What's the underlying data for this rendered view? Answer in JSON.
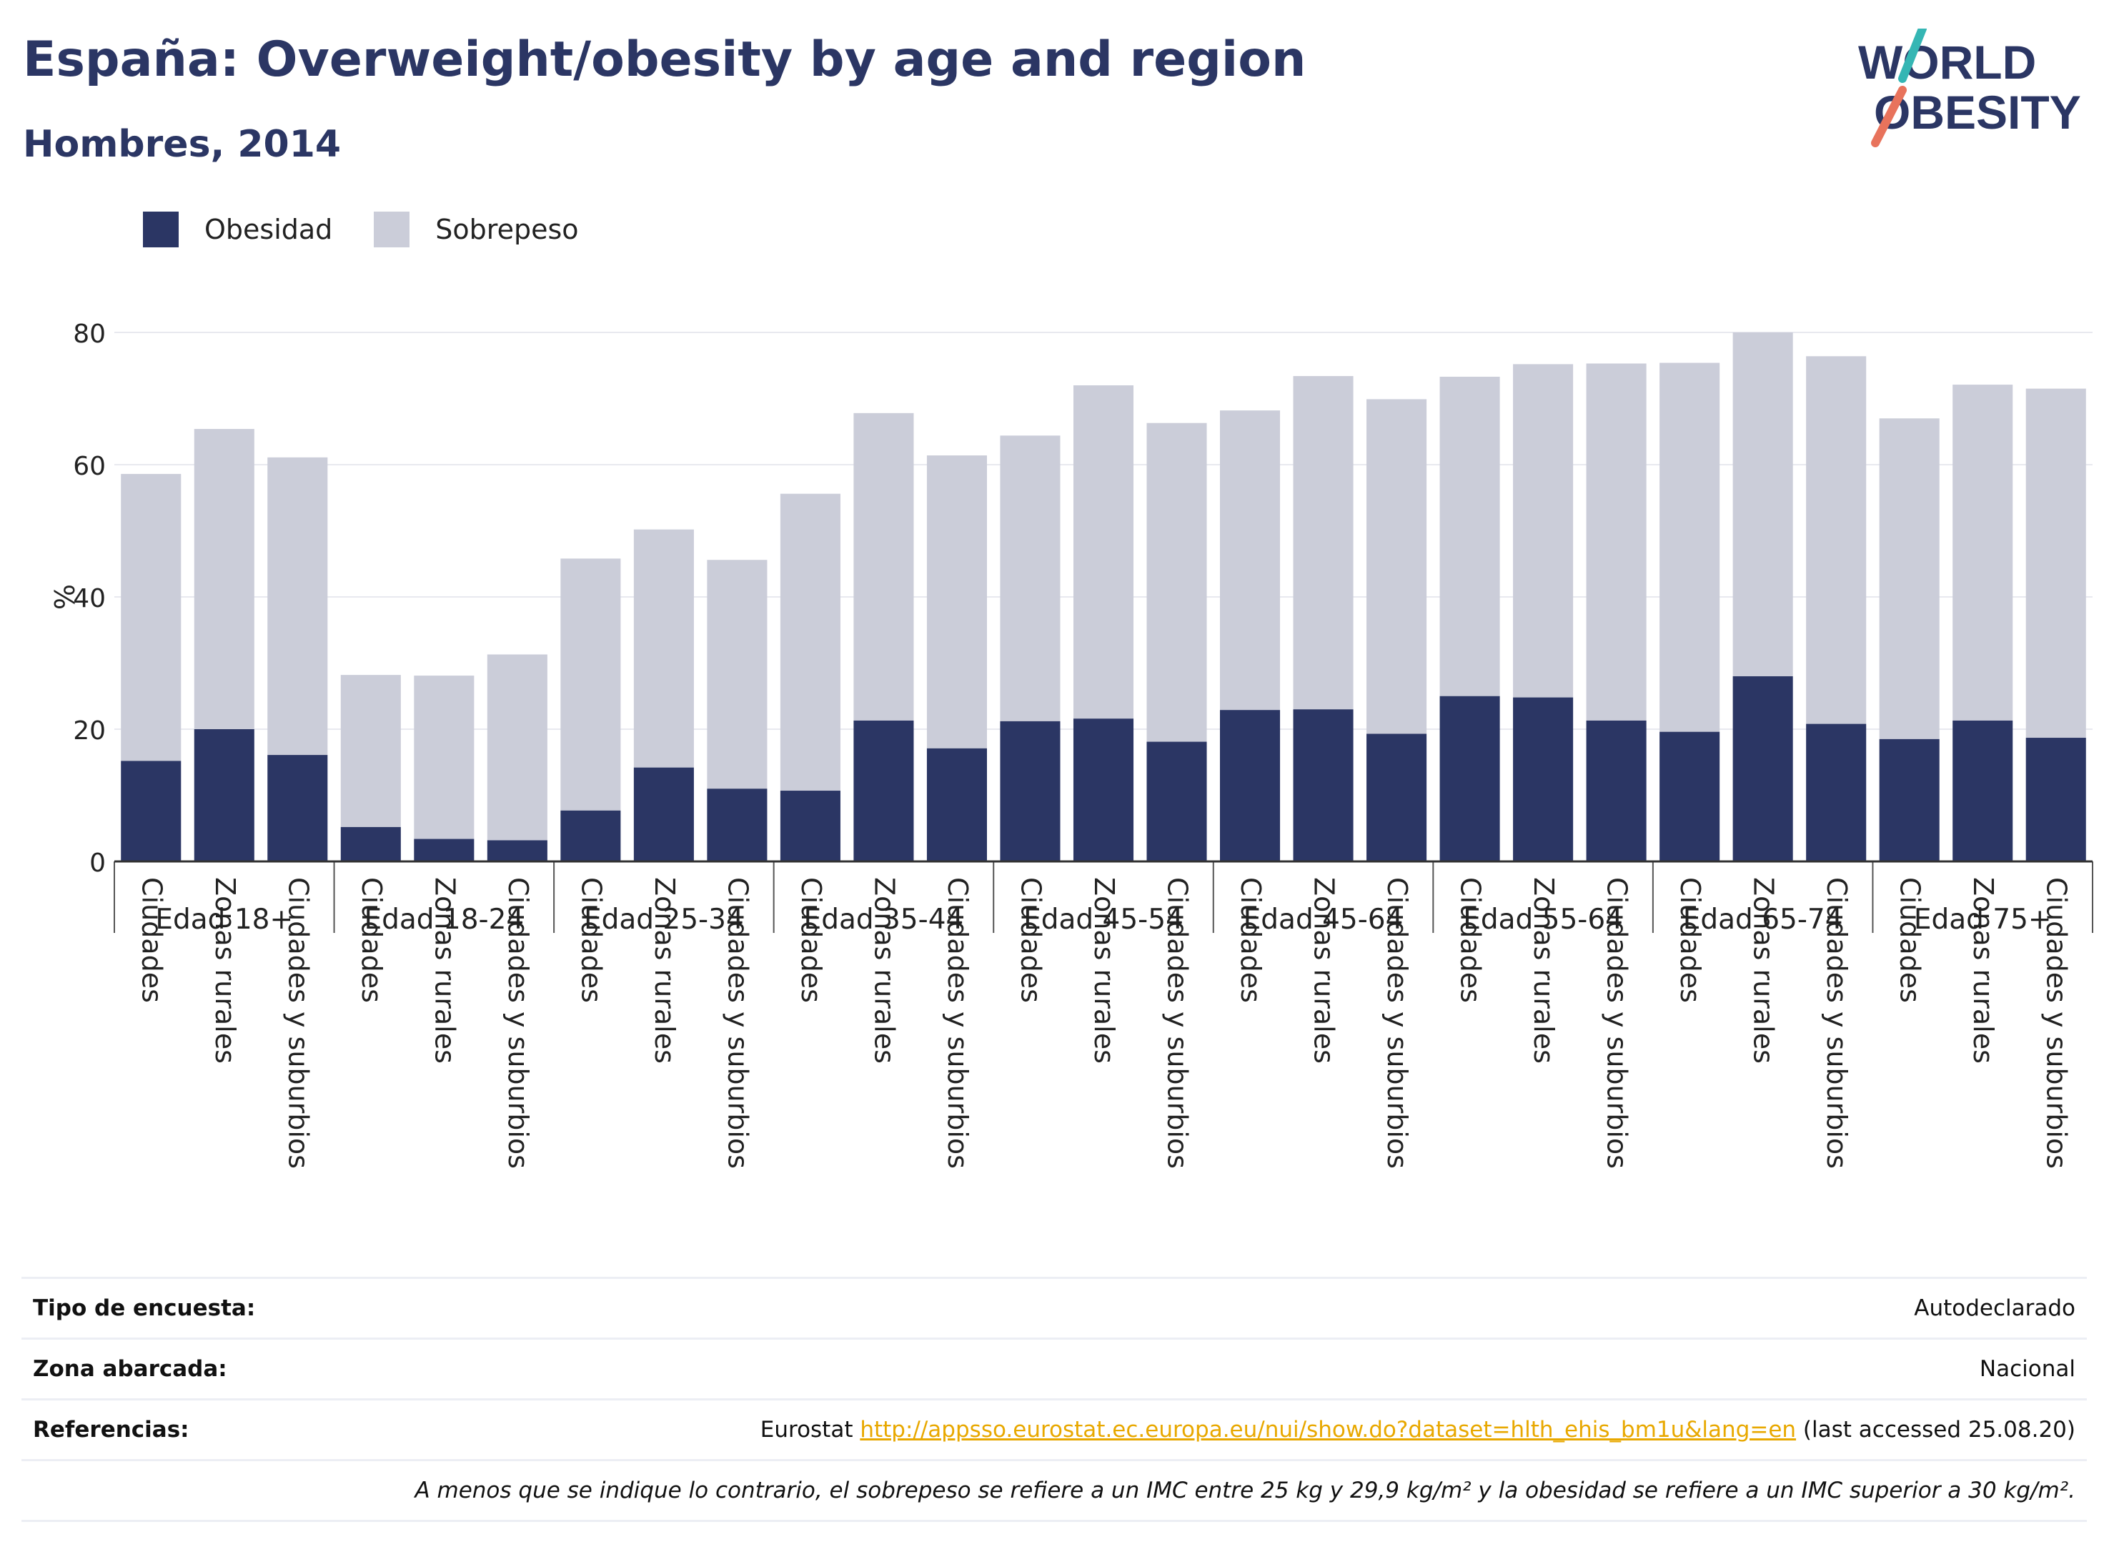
{
  "header": {
    "title": "España: Overweight/obesity by age and region",
    "subtitle": "Hombres, 2014"
  },
  "logo": {
    "line1": "WORLD",
    "line2": "OBESITY"
  },
  "legend": [
    {
      "label": "Obesidad",
      "color": "#2b3664"
    },
    {
      "label": "Sobrepeso",
      "color": "#cbcdd9"
    }
  ],
  "chart_data": {
    "type": "bar",
    "stacked": true,
    "ylabel": "%",
    "ylim": [
      0,
      80
    ],
    "yticks": [
      0,
      20,
      40,
      60,
      80
    ],
    "grid": true,
    "legend_position": "top-left",
    "groups": [
      {
        "label": "Edad 18+",
        "categories": [
          "Ciudades",
          "Zonas rurales",
          "Ciudades y suburbios"
        ],
        "obesidad": [
          15.2,
          20.0,
          16.1
        ],
        "total": [
          58.6,
          65.4,
          61.1
        ]
      },
      {
        "label": "Edad 18-24",
        "categories": [
          "Ciudades",
          "Zonas rurales",
          "Ciudades y suburbios"
        ],
        "obesidad": [
          5.2,
          3.4,
          3.2
        ],
        "total": [
          28.2,
          28.1,
          31.3
        ]
      },
      {
        "label": "Edad 25-34",
        "categories": [
          "Ciudades",
          "Zonas rurales",
          "Ciudades y suburbios"
        ],
        "obesidad": [
          7.7,
          14.2,
          11.0
        ],
        "total": [
          45.8,
          50.2,
          45.6
        ]
      },
      {
        "label": "Edad 35-44",
        "categories": [
          "Ciudades",
          "Zonas rurales",
          "Ciudades y suburbios"
        ],
        "obesidad": [
          10.7,
          21.3,
          17.1
        ],
        "total": [
          55.6,
          67.8,
          61.4
        ]
      },
      {
        "label": "Edad 45-54",
        "categories": [
          "Ciudades",
          "Zonas rurales",
          "Ciudades y suburbios"
        ],
        "obesidad": [
          21.2,
          21.6,
          18.1
        ],
        "total": [
          64.4,
          72.0,
          66.3
        ]
      },
      {
        "label": "Edad 45-64",
        "categories": [
          "Ciudades",
          "Zonas rurales",
          "Ciudades y suburbios"
        ],
        "obesidad": [
          22.9,
          23.0,
          19.3
        ],
        "total": [
          68.2,
          73.4,
          69.9
        ]
      },
      {
        "label": "Edad 55-64",
        "categories": [
          "Ciudades",
          "Zonas rurales",
          "Ciudades y suburbios"
        ],
        "obesidad": [
          25.0,
          24.8,
          21.3
        ],
        "total": [
          73.3,
          75.2,
          75.3
        ]
      },
      {
        "label": "Edad 65-74",
        "categories": [
          "Ciudades",
          "Zonas rurales",
          "Ciudades y suburbios"
        ],
        "obesidad": [
          19.6,
          28.0,
          20.8
        ],
        "total": [
          75.4,
          80.0,
          76.4
        ]
      },
      {
        "label": "Edad 75+",
        "categories": [
          "Ciudades",
          "Zonas rurales",
          "Ciudades y suburbios"
        ],
        "obesidad": [
          18.5,
          21.3,
          18.7
        ],
        "total": [
          67.0,
          72.1,
          71.5
        ]
      }
    ],
    "series": [
      {
        "name": "Obesidad",
        "key": "obesidad",
        "color": "#2b3664"
      },
      {
        "name": "Sobrepeso",
        "key": "sobrepeso",
        "color": "#cbcdd9"
      }
    ]
  },
  "meta": {
    "survey_label": "Tipo de encuesta:",
    "survey_value": "Autodeclarado",
    "area_label": "Zona abarcada:",
    "area_value": "Nacional",
    "ref_label": "Referencias:",
    "ref_prefix": "Eurostat ",
    "ref_link": "http://appsso.eurostat.ec.europa.eu/nui/show.do?dataset=hlth_ehis_bm1u&lang=en",
    "ref_suffix": " (last accessed 25.08.20)",
    "note": "A menos que se indique lo contrario, el sobrepeso se refiere a un IMC entre 25 kg y 29,9 kg/m² y la obesidad se refiere a un IMC superior a 30 kg/m²."
  }
}
